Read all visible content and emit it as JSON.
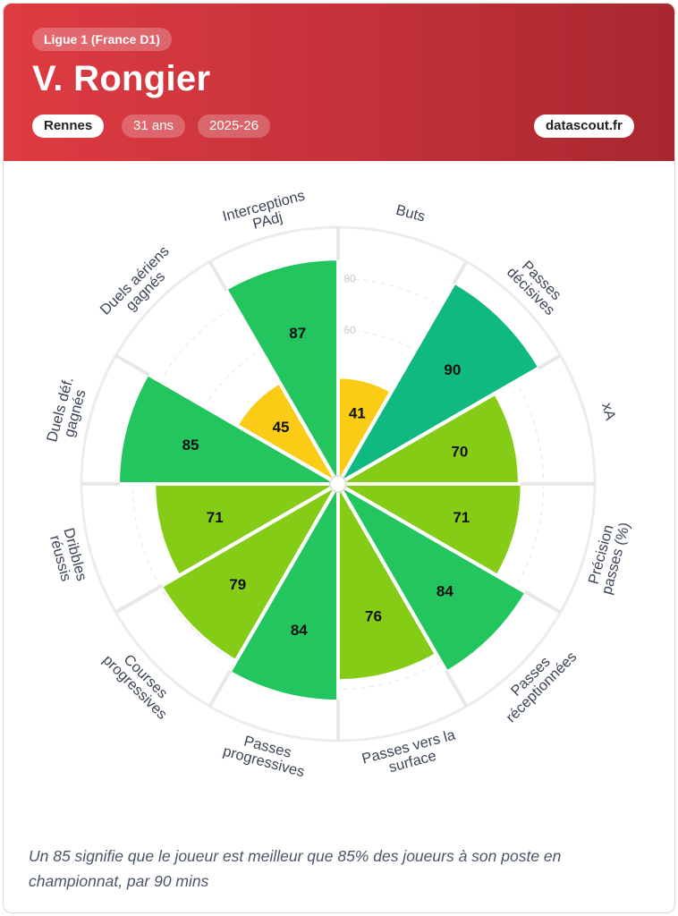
{
  "header": {
    "league": "Ligue 1 (France D1)",
    "player": "V. Rongier",
    "team": "Rennes",
    "age": "31 ans",
    "season": "2025-26",
    "brand": "datascout.fr"
  },
  "footnote": "Un 85 signifie que le joueur est meilleur que 85% des joueurs à son poste en championnat, par 90 mins",
  "colors": {
    "header": "#c4313a",
    "low": "#facc15",
    "mid": "#84cc16",
    "high": "#22c55e",
    "top": "#10b981"
  },
  "chart_data": {
    "type": "polar-bar",
    "categories": [
      {
        "label": [
          "Buts"
        ],
        "value": 41
      },
      {
        "label": [
          "Passes",
          "décisives"
        ],
        "value": 90
      },
      {
        "label": [
          "xA"
        ],
        "value": 70
      },
      {
        "label": [
          "Précision",
          "passes (%)"
        ],
        "value": 71
      },
      {
        "label": [
          "Passes",
          "réceptionnées"
        ],
        "value": 84
      },
      {
        "label": [
          "Passes vers la",
          "surface"
        ],
        "value": 76
      },
      {
        "label": [
          "Passes",
          "progressives"
        ],
        "value": 84
      },
      {
        "label": [
          "Courses",
          "progressives"
        ],
        "value": 79
      },
      {
        "label": [
          "Dribbles",
          "réussis"
        ],
        "value": 71
      },
      {
        "label": [
          "Duels déf.",
          "gagnés"
        ],
        "value": 85
      },
      {
        "label": [
          "Duels aériens",
          "gagnés"
        ],
        "value": 45
      },
      {
        "label": [
          "Interceptions",
          "PAdj"
        ],
        "value": 87
      }
    ],
    "rlim": [
      0,
      100
    ],
    "radial_ticks": [
      40,
      60,
      80
    ],
    "radial_tick_labels": [
      "",
      "60",
      "80"
    ]
  }
}
